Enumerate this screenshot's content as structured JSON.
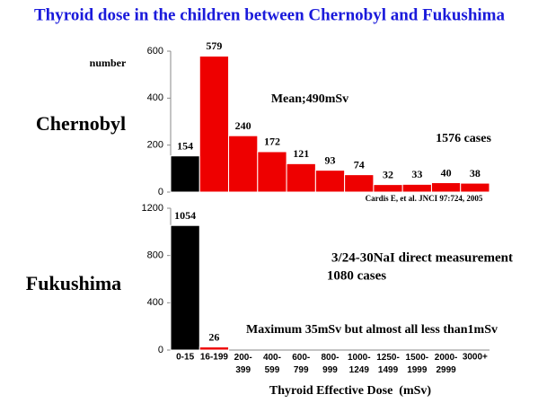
{
  "title": "Thyroid dose in the children between Chernobyl and Fukushima",
  "chart_data": [
    {
      "type": "bar",
      "title": "Chernobyl",
      "y_label": "number",
      "values": [
        154,
        579,
        240,
        172,
        121,
        93,
        74,
        32,
        33,
        40,
        38
      ],
      "colors": [
        "#000000",
        "#ee0000",
        "#ee0000",
        "#ee0000",
        "#ee0000",
        "#ee0000",
        "#ee0000",
        "#ee0000",
        "#ee0000",
        "#ee0000",
        "#ee0000"
      ],
      "ylim": [
        0,
        600
      ],
      "yticks": [
        0,
        200,
        400,
        600
      ],
      "annotations": [
        "Mean;490mSv",
        "1576 cases",
        "Cardis E,  et al. JNCI 97:724, 2005"
      ]
    },
    {
      "type": "bar",
      "title": "Fukushima",
      "x_label": "Thyroid Effective Dose  (mSv)",
      "categories": [
        "0-15",
        "16-199",
        "200-399",
        "400-599",
        "600-799",
        "800-999",
        "1000-1249",
        "1250-1499",
        "1500-1999",
        "2000-2999",
        "3000+"
      ],
      "values": [
        1054,
        26,
        null,
        null,
        null,
        null,
        null,
        null,
        null,
        null,
        null
      ],
      "colors": [
        "#000000",
        "#ee0000",
        null,
        null,
        null,
        null,
        null,
        null,
        null,
        null,
        null
      ],
      "ylim": [
        0,
        1200
      ],
      "yticks": [
        0,
        400,
        800,
        1200
      ],
      "annotations": [
        "3/24-30NaI direct measurement",
        "1080 cases",
        "Maximum 35mSv but almost all less than1mSv"
      ]
    }
  ]
}
